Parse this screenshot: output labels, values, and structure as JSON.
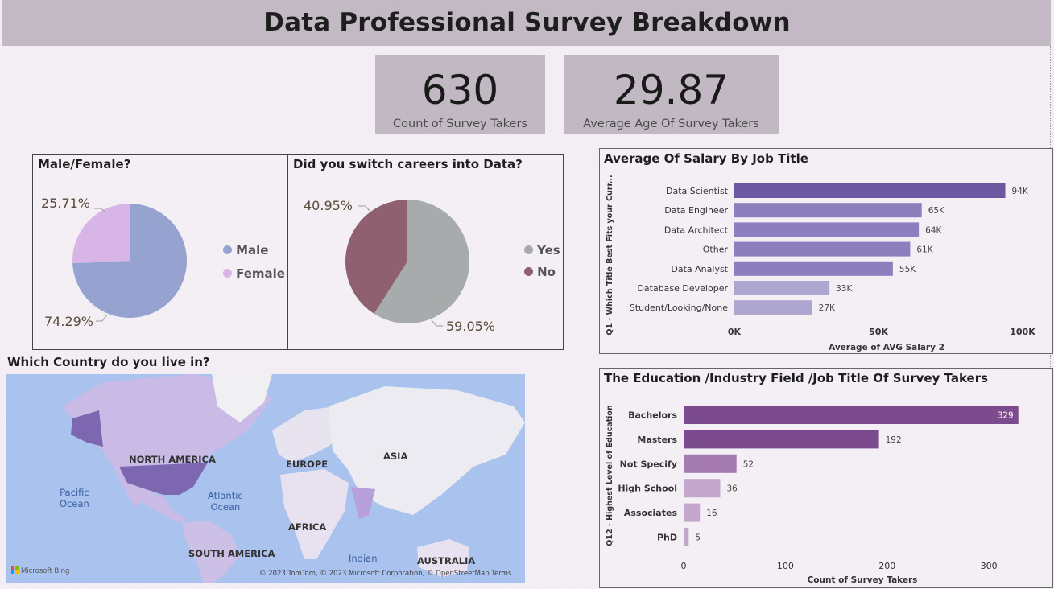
{
  "page": {
    "title": "Data Professional Survey Breakdown"
  },
  "kpis": [
    {
      "value": "630",
      "label": "Count of Survey Takers"
    },
    {
      "value": "29.87",
      "label": "Average Age Of Survey Takers"
    }
  ],
  "colors": {
    "male": "#96a3d1",
    "female": "#d8b5e7",
    "yes": "#a8abab",
    "no": "#8e6070",
    "salary_bars": [
      "#6b58a0",
      "#8c7fbd",
      "#8c7fbd",
      "#8c7fbd",
      "#8c7fbd",
      "#ada6ce",
      "#ada6ce"
    ],
    "education_bars": [
      "#7c4b8e",
      "#7c4b8e",
      "#a57ab1",
      "#c3a6cb",
      "#c3a6cb",
      "#c3a6cb"
    ]
  },
  "map": {
    "title": "Which Country do you live in?",
    "labels": {
      "north_america": "NORTH AMERICA",
      "europe": "EUROPE",
      "asia": "ASIA",
      "africa": "AFRICA",
      "south_america": "SOUTH AMERICA",
      "australia": "AUSTRALIA"
    },
    "oceans": {
      "pacific": "Pacific\nOcean",
      "atlantic": "Atlantic\nOcean",
      "indian": "Indian"
    },
    "brand": "Microsoft Bing",
    "attribution": "© 2023 TomTom, © 2023 Microsoft Corporation, © OpenStreetMap  Terms"
  },
  "chart_data": [
    {
      "type": "pie",
      "title": "Male/Female?",
      "labels": [
        "Male",
        "Female"
      ],
      "values": [
        74.29,
        25.71
      ],
      "data_labels": [
        "74.29%",
        "25.71%"
      ],
      "legend": "right"
    },
    {
      "type": "pie",
      "title": "Did you switch careers into Data?",
      "labels": [
        "Yes",
        "No"
      ],
      "values": [
        59.05,
        40.95
      ],
      "data_labels": [
        "59.05%",
        "40.95%"
      ],
      "legend": "right"
    },
    {
      "type": "bar",
      "orientation": "horizontal",
      "title": "Average Of Salary By Job Title",
      "ylabel": "Q1 - Which Title Best Fits your Curr...",
      "xlabel": "Average of AVG Salary 2",
      "categories": [
        "Data Scientist",
        "Data Engineer",
        "Data Architect",
        "Other",
        "Data Analyst",
        "Database Developer",
        "Student/Looking/None"
      ],
      "values": [
        94,
        65,
        64,
        61,
        55,
        33,
        27
      ],
      "data_labels": [
        "94K",
        "65K",
        "64K",
        "61K",
        "55K",
        "33K",
        "27K"
      ],
      "xlim": [
        0,
        100
      ],
      "xticks": [
        "0K",
        "50K",
        "100K"
      ]
    },
    {
      "type": "bar",
      "orientation": "horizontal",
      "title": "The Education /Industry Field /Job Title Of Survey Takers",
      "ylabel": "Q12 - Highest Level of Education",
      "xlabel": "Count of Survey Takers",
      "categories": [
        "Bachelors",
        "Masters",
        "Not Specify",
        "High School",
        "Associates",
        "PhD"
      ],
      "values": [
        329,
        192,
        52,
        36,
        16,
        5
      ],
      "data_labels": [
        "329",
        "192",
        "52",
        "36",
        "16",
        "5"
      ],
      "xlim": [
        0,
        330
      ],
      "xticks": [
        "0",
        "100",
        "200",
        "300"
      ]
    }
  ]
}
